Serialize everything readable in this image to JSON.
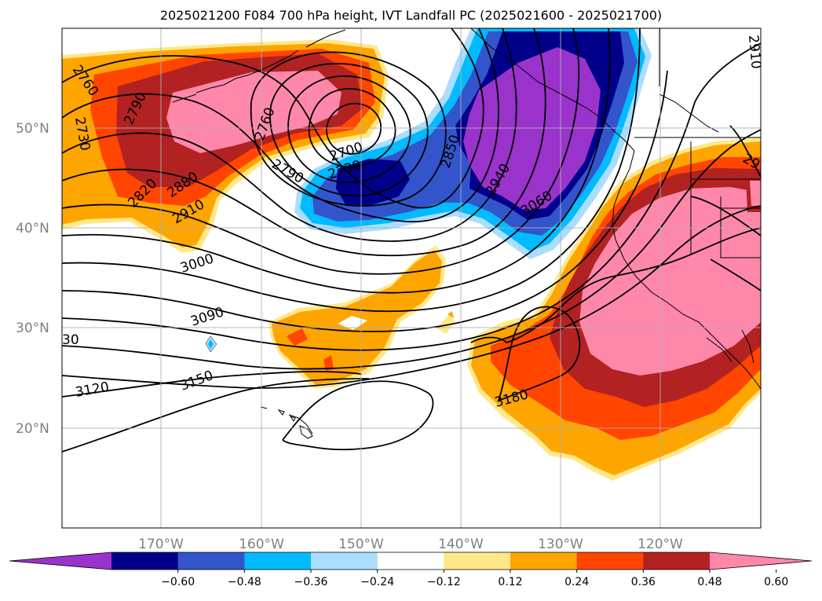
{
  "title": "2025021200 F084 700 hPa height, IVT Landfall PC (2025021600 - 2025021700)",
  "lat_labels": [
    "50°N",
    "40°N",
    "30°N",
    "20°N"
  ],
  "lon_labels": [
    "170°W",
    "160°W",
    "150°W",
    "140°W",
    "130°W",
    "120°W"
  ],
  "contour_labels": [
    "2760",
    "2730",
    "2790",
    "2760",
    "2700",
    "2730",
    "2790",
    "2820",
    "2880",
    "2910",
    "2850",
    "2940",
    "3060",
    "3000",
    "3090",
    "30",
    "3120",
    "3150",
    "3180",
    "2910",
    "29"
  ],
  "colorbar": {
    "colors": [
      "#9933cc",
      "#00008b",
      "#3355cc",
      "#00bbff",
      "#aaddff",
      "#ffffff",
      "#ffe88a",
      "#ffa500",
      "#ff4500",
      "#b22222",
      "#ff88aa"
    ],
    "ticks": [
      "−0.60",
      "−0.48",
      "−0.36",
      "−0.24",
      "−0.12",
      "0.12",
      "0.24",
      "0.36",
      "0.48",
      "0.60"
    ]
  },
  "chart_data": {
    "type": "map",
    "title": "2025021200 F084 700 hPa height, IVT Landfall PC (2025021600 - 2025021700)",
    "fields": [
      "700 hPa height (m)",
      "IVT Landfall PC (shaded)"
    ],
    "lon_ticks": [
      "170°W",
      "160°W",
      "150°W",
      "140°W",
      "130°W",
      "120°W"
    ],
    "lat_ticks": [
      "50°N",
      "40°N",
      "30°N",
      "20°N"
    ],
    "height_contours": [
      2700,
      2730,
      2760,
      2790,
      2820,
      2850,
      2880,
      2910,
      2940,
      3000,
      3060,
      3090,
      3120,
      3150,
      3180
    ],
    "shading_levels": [
      -0.6,
      -0.48,
      -0.36,
      -0.24,
      -0.12,
      0.12,
      0.24,
      0.36,
      0.48,
      0.6
    ],
    "colorbar_extend": "both"
  }
}
